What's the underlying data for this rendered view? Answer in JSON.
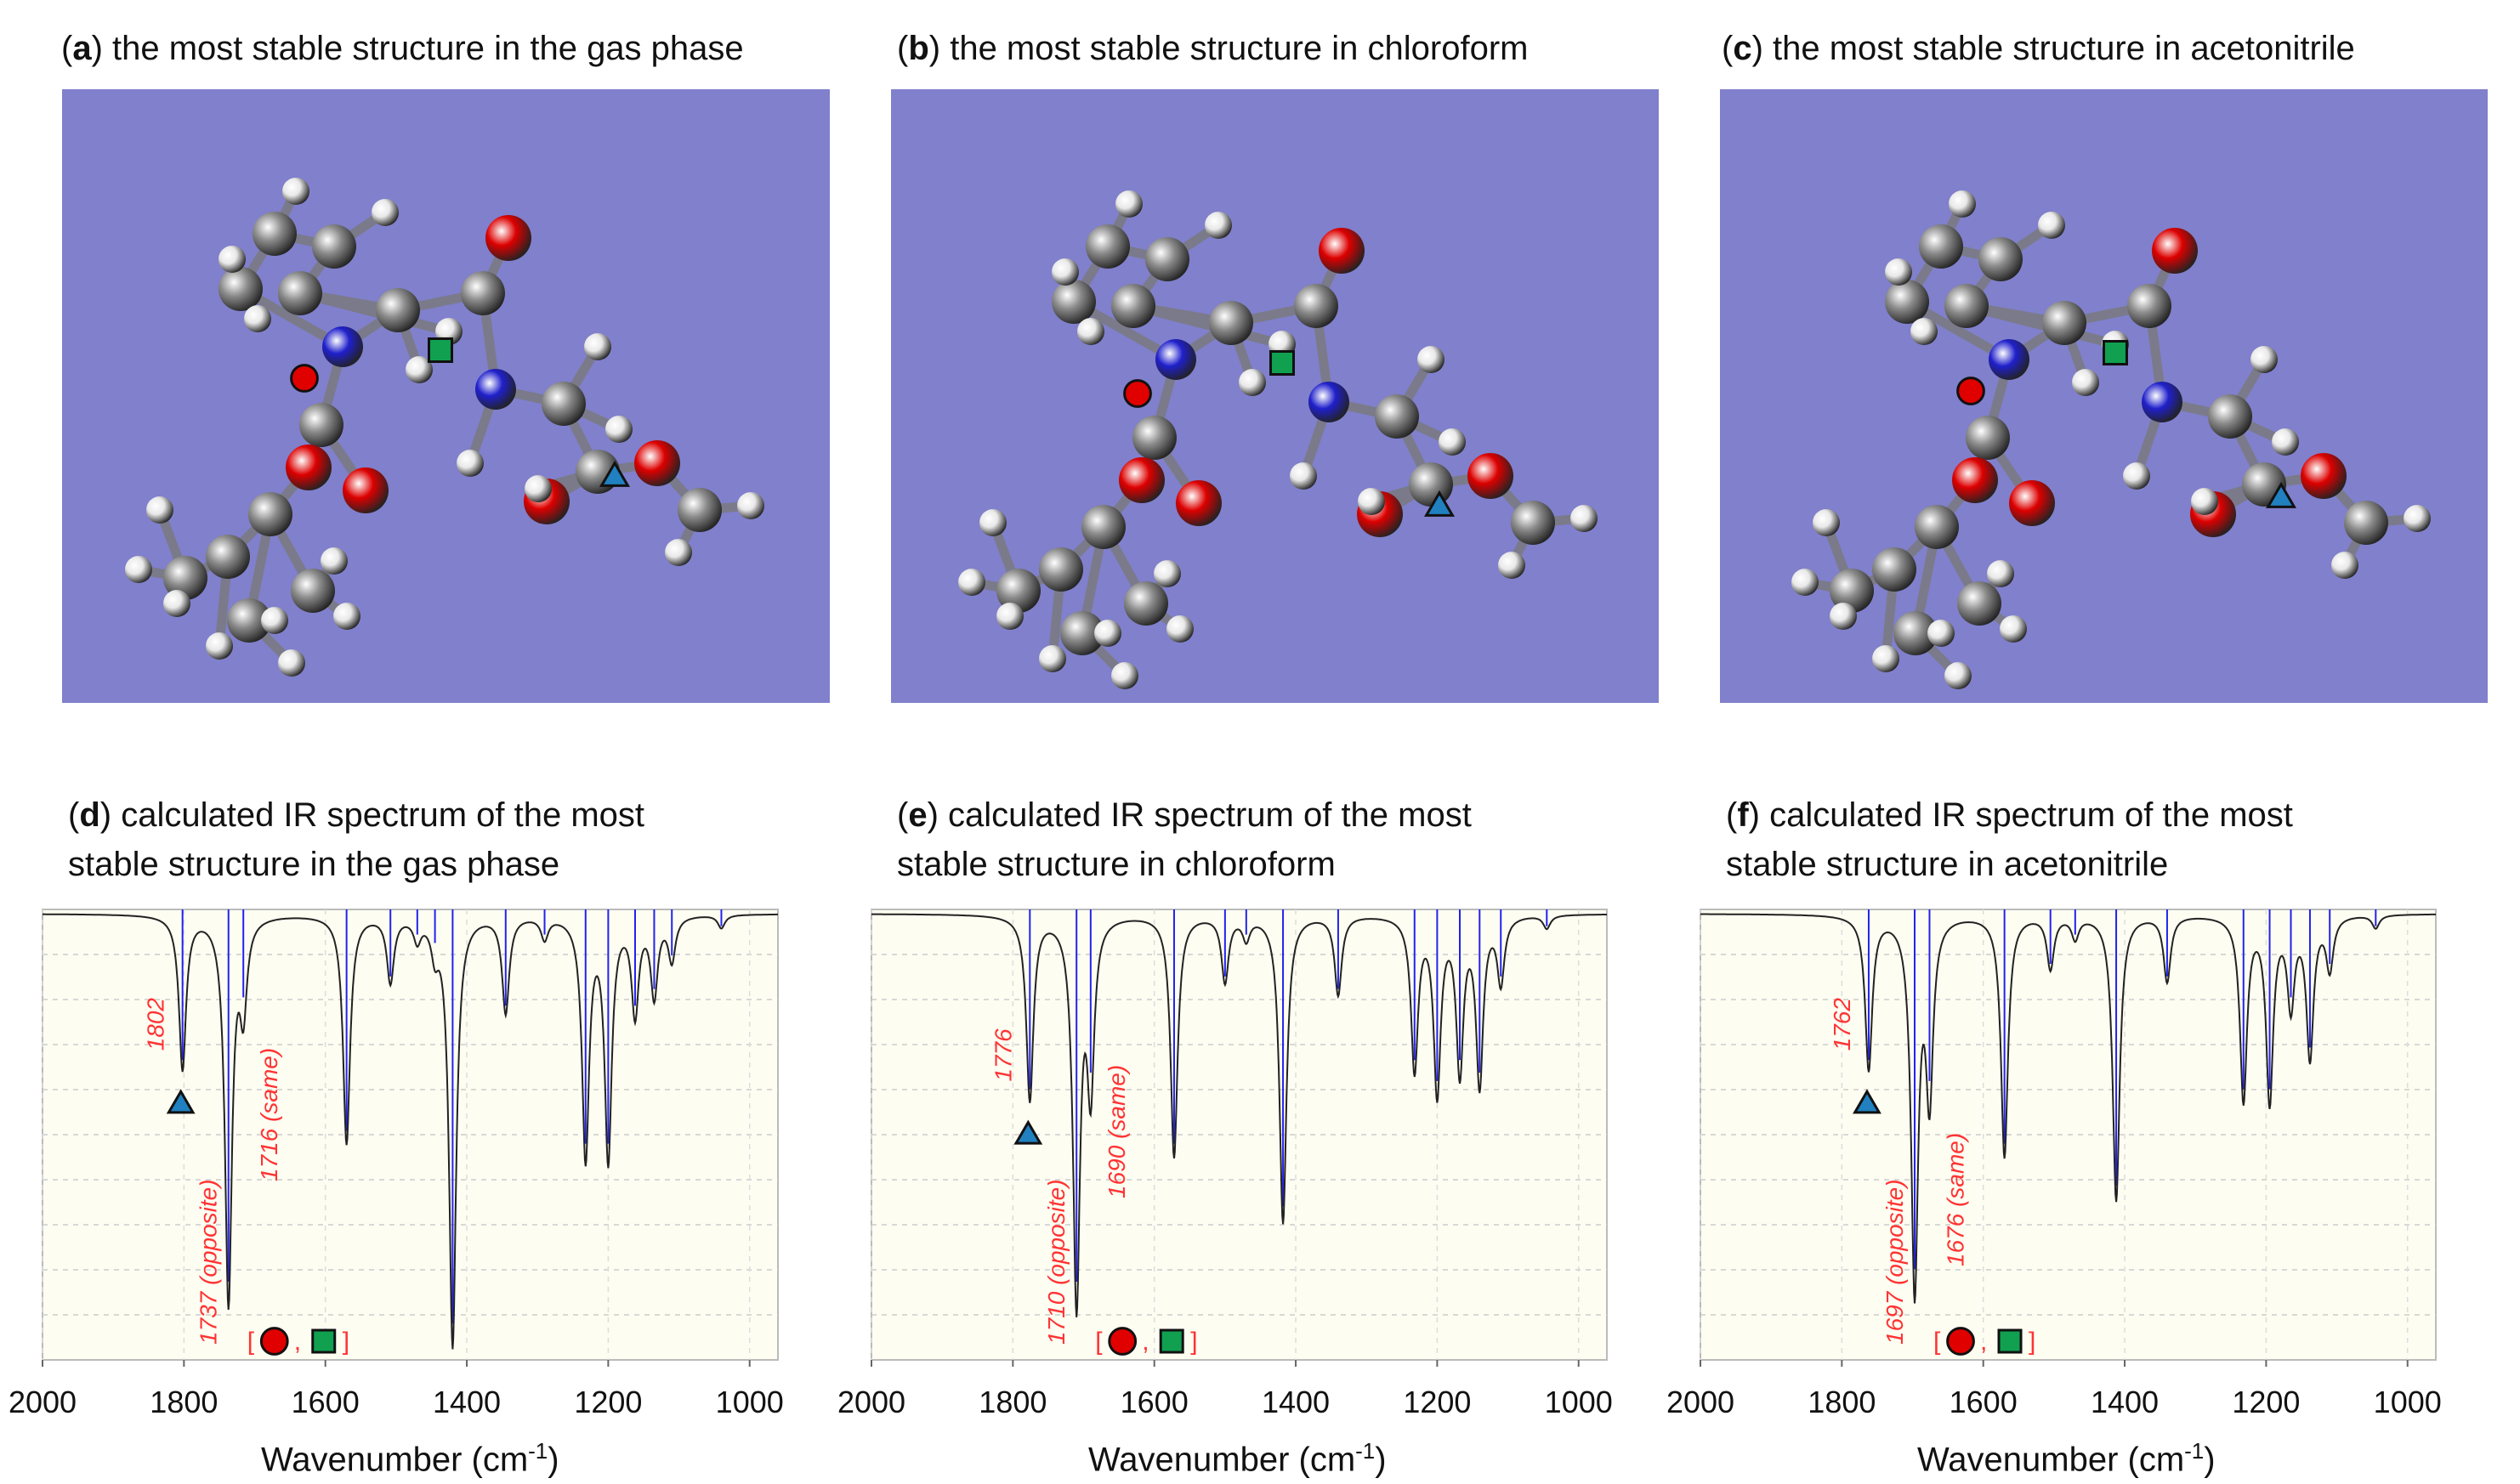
{
  "panels": {
    "a": {
      "letter": "a",
      "title": "the most stable structure in the gas phase"
    },
    "b": {
      "letter": "b",
      "title": "the most stable structure in chloroform"
    },
    "c": {
      "letter": "c",
      "title": "the most stable structure in acetonitrile"
    },
    "d": {
      "letter": "d",
      "title_line1": "calculated IR spectrum of the most",
      "title_line2": "stable structure in the gas phase"
    },
    "e": {
      "letter": "e",
      "title_line1": "calculated IR spectrum of the most",
      "title_line2": "stable structure in chloroform"
    },
    "f": {
      "letter": "f",
      "title_line1": "calculated IR spectrum of the most",
      "title_line2": "stable structure in acetonitrile"
    }
  },
  "axis": {
    "xlabel_text": "Wavenumber (cm",
    "xlabel_sup": "-1",
    "xlabel_close": ")"
  },
  "colors": {
    "molecule_bg": "#8080cc",
    "carbon": "#8a8a8a",
    "hydrogen": "#e8e8e8",
    "nitrogen": "#2020cc",
    "oxygen": "#dd0000",
    "stick": "#7a7a8a",
    "marker_circle": "#e00000",
    "marker_square": "#10a050",
    "marker_triangle": "#2080c0",
    "plot_bg": "#fdfdf2",
    "spectrum": "#222222",
    "stick_line": "#2222ee",
    "annotation": "#ff3333"
  },
  "chart_data": [
    {
      "type": "line",
      "id": "d",
      "title": "calculated IR spectrum of the most stable structure in the gas phase",
      "xlabel": "Wavenumber (cm-1)",
      "ylabel": "",
      "xlim": [
        2000,
        960
      ],
      "ylim": [
        0,
        1
      ],
      "xticks": [
        "2000",
        "1800",
        "1600",
        "1400",
        "1200",
        "1000"
      ],
      "peaks": [
        {
          "x": 1802,
          "y": 0.35
        },
        {
          "x": 1737,
          "y": 0.88
        },
        {
          "x": 1716,
          "y": 0.2
        },
        {
          "x": 1570,
          "y": 0.52
        },
        {
          "x": 1508,
          "y": 0.15
        },
        {
          "x": 1470,
          "y": 0.05
        },
        {
          "x": 1445,
          "y": 0.07
        },
        {
          "x": 1420,
          "y": 0.98
        },
        {
          "x": 1345,
          "y": 0.22
        },
        {
          "x": 1290,
          "y": 0.05
        },
        {
          "x": 1232,
          "y": 0.55
        },
        {
          "x": 1200,
          "y": 0.55
        },
        {
          "x": 1162,
          "y": 0.22
        },
        {
          "x": 1135,
          "y": 0.18
        },
        {
          "x": 1110,
          "y": 0.1
        },
        {
          "x": 1040,
          "y": 0.03
        }
      ],
      "annotations": [
        {
          "text": "1802",
          "x": 1802,
          "marker": "triangle"
        },
        {
          "text": "1737 (opposite)",
          "x": 1737,
          "marker": "circle"
        },
        {
          "text": "1716 (same)",
          "x": 1716,
          "marker": "square"
        }
      ],
      "marker_labels": {
        "open": "[",
        "sep": ",",
        "close": "]"
      }
    },
    {
      "type": "line",
      "id": "e",
      "title": "calculated IR spectrum of the most stable structure in chloroform",
      "xlabel": "Wavenumber (cm-1)",
      "ylabel": "",
      "xlim": [
        2000,
        960
      ],
      "ylim": [
        0,
        1
      ],
      "xticks": [
        "2000",
        "1800",
        "1600",
        "1400",
        "1200",
        "1000"
      ],
      "peaks": [
        {
          "x": 1776,
          "y": 0.42
        },
        {
          "x": 1710,
          "y": 0.88
        },
        {
          "x": 1690,
          "y": 0.38
        },
        {
          "x": 1572,
          "y": 0.55
        },
        {
          "x": 1500,
          "y": 0.15
        },
        {
          "x": 1470,
          "y": 0.05
        },
        {
          "x": 1418,
          "y": 0.7
        },
        {
          "x": 1340,
          "y": 0.18
        },
        {
          "x": 1232,
          "y": 0.35
        },
        {
          "x": 1200,
          "y": 0.4
        },
        {
          "x": 1168,
          "y": 0.35
        },
        {
          "x": 1140,
          "y": 0.38
        },
        {
          "x": 1110,
          "y": 0.15
        },
        {
          "x": 1045,
          "y": 0.03
        }
      ],
      "annotations": [
        {
          "text": "1776",
          "x": 1776,
          "marker": "triangle"
        },
        {
          "text": "1710 (opposite)",
          "x": 1710,
          "marker": "circle"
        },
        {
          "text": "1690 (same)",
          "x": 1690,
          "marker": "square"
        }
      ],
      "marker_labels": {
        "open": "[",
        "sep": ",",
        "close": "]"
      }
    },
    {
      "type": "line",
      "id": "f",
      "title": "calculated IR spectrum of the most stable structure in acetonitrile",
      "xlabel": "Wavenumber (cm-1)",
      "ylabel": "",
      "xlim": [
        2000,
        960
      ],
      "ylim": [
        0,
        1
      ],
      "xticks": [
        "2000",
        "1800",
        "1600",
        "1400",
        "1200",
        "1000"
      ],
      "peaks": [
        {
          "x": 1762,
          "y": 0.35
        },
        {
          "x": 1697,
          "y": 0.85
        },
        {
          "x": 1676,
          "y": 0.4
        },
        {
          "x": 1570,
          "y": 0.55
        },
        {
          "x": 1505,
          "y": 0.12
        },
        {
          "x": 1470,
          "y": 0.05
        },
        {
          "x": 1412,
          "y": 0.65
        },
        {
          "x": 1340,
          "y": 0.15
        },
        {
          "x": 1232,
          "y": 0.42
        },
        {
          "x": 1195,
          "y": 0.42
        },
        {
          "x": 1165,
          "y": 0.2
        },
        {
          "x": 1138,
          "y": 0.32
        },
        {
          "x": 1110,
          "y": 0.12
        },
        {
          "x": 1045,
          "y": 0.03
        }
      ],
      "annotations": [
        {
          "text": "1762",
          "x": 1762,
          "marker": "triangle"
        },
        {
          "text": "1697 (opposite)",
          "x": 1697,
          "marker": "circle"
        },
        {
          "text": "1676 (same)",
          "x": 1676,
          "marker": "square"
        }
      ],
      "marker_labels": {
        "open": "[",
        "sep": ",",
        "close": "]"
      }
    }
  ]
}
